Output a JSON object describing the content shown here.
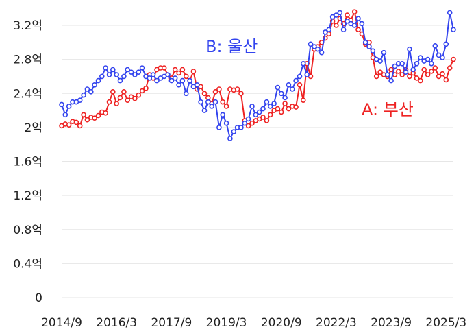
{
  "chart_data": {
    "type": "line",
    "title": "",
    "xlabel": "",
    "ylabel": "",
    "ylim": [
      0,
      3.2
    ],
    "y_ticks": [
      {
        "v": 0,
        "label": "0"
      },
      {
        "v": 0.4,
        "label": "0.4억"
      },
      {
        "v": 0.8,
        "label": "0.8억"
      },
      {
        "v": 1.2,
        "label": "1.2억"
      },
      {
        "v": 1.6,
        "label": "1.6억"
      },
      {
        "v": 2.0,
        "label": "2억"
      },
      {
        "v": 2.4,
        "label": "2.4억"
      },
      {
        "v": 2.8,
        "label": "2.8억"
      },
      {
        "v": 3.2,
        "label": "3.2억"
      }
    ],
    "x_ticks": [
      {
        "t": 2014.75,
        "label": "2014/9"
      },
      {
        "t": 2016.25,
        "label": "2016/3"
      },
      {
        "t": 2017.75,
        "label": "2017/9"
      },
      {
        "t": 2019.25,
        "label": "2019/3"
      },
      {
        "t": 2020.75,
        "label": "2020/9"
      },
      {
        "t": 2022.25,
        "label": "2022/3"
      },
      {
        "t": 2023.75,
        "label": "2023/9"
      },
      {
        "t": 2025.25,
        "label": "2025/3"
      }
    ],
    "xlim": [
      2014.75,
      2025.45
    ],
    "grid": true,
    "series": [
      {
        "name": "A: 부산",
        "color": "#ee2222",
        "points": [
          [
            2014.75,
            2.02
          ],
          [
            2014.85,
            2.04
          ],
          [
            2014.95,
            2.03
          ],
          [
            2015.05,
            2.07
          ],
          [
            2015.15,
            2.06
          ],
          [
            2015.25,
            2.02
          ],
          [
            2015.35,
            2.15
          ],
          [
            2015.45,
            2.09
          ],
          [
            2015.55,
            2.12
          ],
          [
            2015.65,
            2.11
          ],
          [
            2015.75,
            2.14
          ],
          [
            2015.85,
            2.18
          ],
          [
            2015.95,
            2.17
          ],
          [
            2016.05,
            2.3
          ],
          [
            2016.15,
            2.42
          ],
          [
            2016.25,
            2.28
          ],
          [
            2016.35,
            2.35
          ],
          [
            2016.45,
            2.42
          ],
          [
            2016.55,
            2.32
          ],
          [
            2016.65,
            2.36
          ],
          [
            2016.75,
            2.34
          ],
          [
            2016.85,
            2.38
          ],
          [
            2016.95,
            2.43
          ],
          [
            2017.05,
            2.46
          ],
          [
            2017.15,
            2.62
          ],
          [
            2017.25,
            2.58
          ],
          [
            2017.35,
            2.68
          ],
          [
            2017.45,
            2.7
          ],
          [
            2017.55,
            2.7
          ],
          [
            2017.65,
            2.62
          ],
          [
            2017.75,
            2.58
          ],
          [
            2017.85,
            2.68
          ],
          [
            2017.95,
            2.64
          ],
          [
            2018.05,
            2.68
          ],
          [
            2018.15,
            2.6
          ],
          [
            2018.25,
            2.55
          ],
          [
            2018.35,
            2.66
          ],
          [
            2018.45,
            2.45
          ],
          [
            2018.55,
            2.48
          ],
          [
            2018.65,
            2.4
          ],
          [
            2018.75,
            2.35
          ],
          [
            2018.85,
            2.28
          ],
          [
            2018.95,
            2.42
          ],
          [
            2019.05,
            2.45
          ],
          [
            2019.15,
            2.3
          ],
          [
            2019.25,
            2.25
          ],
          [
            2019.35,
            2.45
          ],
          [
            2019.45,
            2.44
          ],
          [
            2019.55,
            2.45
          ],
          [
            2019.65,
            2.4
          ],
          [
            2019.75,
            2.08
          ],
          [
            2019.85,
            2.02
          ],
          [
            2019.95,
            2.05
          ],
          [
            2020.05,
            2.08
          ],
          [
            2020.15,
            2.1
          ],
          [
            2020.25,
            2.12
          ],
          [
            2020.35,
            2.08
          ],
          [
            2020.45,
            2.15
          ],
          [
            2020.55,
            2.2
          ],
          [
            2020.65,
            2.22
          ],
          [
            2020.75,
            2.18
          ],
          [
            2020.85,
            2.28
          ],
          [
            2020.95,
            2.22
          ],
          [
            2021.05,
            2.25
          ],
          [
            2021.15,
            2.24
          ],
          [
            2021.25,
            2.5
          ],
          [
            2021.35,
            2.32
          ],
          [
            2021.45,
            2.75
          ],
          [
            2021.55,
            2.6
          ],
          [
            2021.65,
            2.92
          ],
          [
            2021.75,
            2.95
          ],
          [
            2021.85,
            3.0
          ],
          [
            2021.95,
            3.05
          ],
          [
            2022.05,
            3.1
          ],
          [
            2022.15,
            3.25
          ],
          [
            2022.25,
            3.2
          ],
          [
            2022.35,
            3.28
          ],
          [
            2022.45,
            3.22
          ],
          [
            2022.55,
            3.32
          ],
          [
            2022.65,
            3.26
          ],
          [
            2022.75,
            3.36
          ],
          [
            2022.85,
            3.15
          ],
          [
            2022.95,
            3.1
          ],
          [
            2023.05,
            2.98
          ],
          [
            2023.15,
            3.0
          ],
          [
            2023.25,
            2.82
          ],
          [
            2023.35,
            2.6
          ],
          [
            2023.45,
            2.65
          ],
          [
            2023.55,
            2.62
          ],
          [
            2023.65,
            2.6
          ],
          [
            2023.75,
            2.68
          ],
          [
            2023.85,
            2.62
          ],
          [
            2023.95,
            2.66
          ],
          [
            2024.05,
            2.62
          ],
          [
            2024.15,
            2.68
          ],
          [
            2024.25,
            2.6
          ],
          [
            2024.35,
            2.64
          ],
          [
            2024.45,
            2.58
          ],
          [
            2024.55,
            2.55
          ],
          [
            2024.65,
            2.68
          ],
          [
            2024.75,
            2.62
          ],
          [
            2024.85,
            2.66
          ],
          [
            2024.95,
            2.7
          ],
          [
            2025.05,
            2.6
          ],
          [
            2025.15,
            2.63
          ],
          [
            2025.25,
            2.56
          ],
          [
            2025.35,
            2.7
          ],
          [
            2025.45,
            2.8
          ]
        ]
      },
      {
        "name": "B: 울산",
        "color": "#3344ee",
        "points": [
          [
            2014.75,
            2.27
          ],
          [
            2014.85,
            2.15
          ],
          [
            2014.95,
            2.25
          ],
          [
            2015.05,
            2.3
          ],
          [
            2015.15,
            2.3
          ],
          [
            2015.25,
            2.32
          ],
          [
            2015.35,
            2.38
          ],
          [
            2015.45,
            2.45
          ],
          [
            2015.55,
            2.42
          ],
          [
            2015.65,
            2.5
          ],
          [
            2015.75,
            2.55
          ],
          [
            2015.85,
            2.6
          ],
          [
            2015.95,
            2.7
          ],
          [
            2016.05,
            2.62
          ],
          [
            2016.15,
            2.68
          ],
          [
            2016.25,
            2.62
          ],
          [
            2016.35,
            2.55
          ],
          [
            2016.45,
            2.6
          ],
          [
            2016.55,
            2.68
          ],
          [
            2016.65,
            2.65
          ],
          [
            2016.75,
            2.62
          ],
          [
            2016.85,
            2.65
          ],
          [
            2016.95,
            2.7
          ],
          [
            2017.05,
            2.6
          ],
          [
            2017.15,
            2.58
          ],
          [
            2017.25,
            2.62
          ],
          [
            2017.35,
            2.55
          ],
          [
            2017.45,
            2.58
          ],
          [
            2017.55,
            2.6
          ],
          [
            2017.65,
            2.62
          ],
          [
            2017.75,
            2.55
          ],
          [
            2017.85,
            2.58
          ],
          [
            2017.95,
            2.5
          ],
          [
            2018.05,
            2.55
          ],
          [
            2018.15,
            2.4
          ],
          [
            2018.25,
            2.55
          ],
          [
            2018.35,
            2.48
          ],
          [
            2018.45,
            2.5
          ],
          [
            2018.55,
            2.3
          ],
          [
            2018.65,
            2.2
          ],
          [
            2018.75,
            2.3
          ],
          [
            2018.85,
            2.25
          ],
          [
            2018.95,
            2.3
          ],
          [
            2019.05,
            2.0
          ],
          [
            2019.15,
            2.15
          ],
          [
            2019.25,
            2.05
          ],
          [
            2019.35,
            1.87
          ],
          [
            2019.45,
            1.95
          ],
          [
            2019.55,
            2.0
          ],
          [
            2019.65,
            2.0
          ],
          [
            2019.75,
            2.05
          ],
          [
            2019.85,
            2.1
          ],
          [
            2019.95,
            2.25
          ],
          [
            2020.05,
            2.15
          ],
          [
            2020.15,
            2.18
          ],
          [
            2020.25,
            2.22
          ],
          [
            2020.35,
            2.3
          ],
          [
            2020.45,
            2.25
          ],
          [
            2020.55,
            2.28
          ],
          [
            2020.65,
            2.47
          ],
          [
            2020.75,
            2.4
          ],
          [
            2020.85,
            2.35
          ],
          [
            2020.95,
            2.5
          ],
          [
            2021.05,
            2.45
          ],
          [
            2021.15,
            2.55
          ],
          [
            2021.25,
            2.6
          ],
          [
            2021.35,
            2.75
          ],
          [
            2021.45,
            2.62
          ],
          [
            2021.55,
            2.98
          ],
          [
            2021.65,
            2.95
          ],
          [
            2021.75,
            2.92
          ],
          [
            2021.85,
            2.88
          ],
          [
            2021.95,
            3.12
          ],
          [
            2022.05,
            3.15
          ],
          [
            2022.15,
            3.3
          ],
          [
            2022.25,
            3.32
          ],
          [
            2022.35,
            3.35
          ],
          [
            2022.45,
            3.15
          ],
          [
            2022.55,
            3.25
          ],
          [
            2022.65,
            3.22
          ],
          [
            2022.75,
            3.2
          ],
          [
            2022.85,
            3.28
          ],
          [
            2022.95,
            3.22
          ],
          [
            2023.05,
            3.0
          ],
          [
            2023.15,
            2.95
          ],
          [
            2023.25,
            2.9
          ],
          [
            2023.35,
            2.8
          ],
          [
            2023.45,
            2.78
          ],
          [
            2023.55,
            2.88
          ],
          [
            2023.65,
            2.62
          ],
          [
            2023.75,
            2.55
          ],
          [
            2023.85,
            2.72
          ],
          [
            2023.95,
            2.75
          ],
          [
            2024.05,
            2.75
          ],
          [
            2024.15,
            2.65
          ],
          [
            2024.25,
            2.92
          ],
          [
            2024.35,
            2.68
          ],
          [
            2024.45,
            2.75
          ],
          [
            2024.55,
            2.82
          ],
          [
            2024.65,
            2.78
          ],
          [
            2024.75,
            2.8
          ],
          [
            2024.85,
            2.75
          ],
          [
            2024.95,
            2.96
          ],
          [
            2025.05,
            2.85
          ],
          [
            2025.15,
            2.82
          ],
          [
            2025.25,
            2.98
          ],
          [
            2025.35,
            3.35
          ],
          [
            2025.45,
            3.15
          ]
        ]
      }
    ]
  }
}
